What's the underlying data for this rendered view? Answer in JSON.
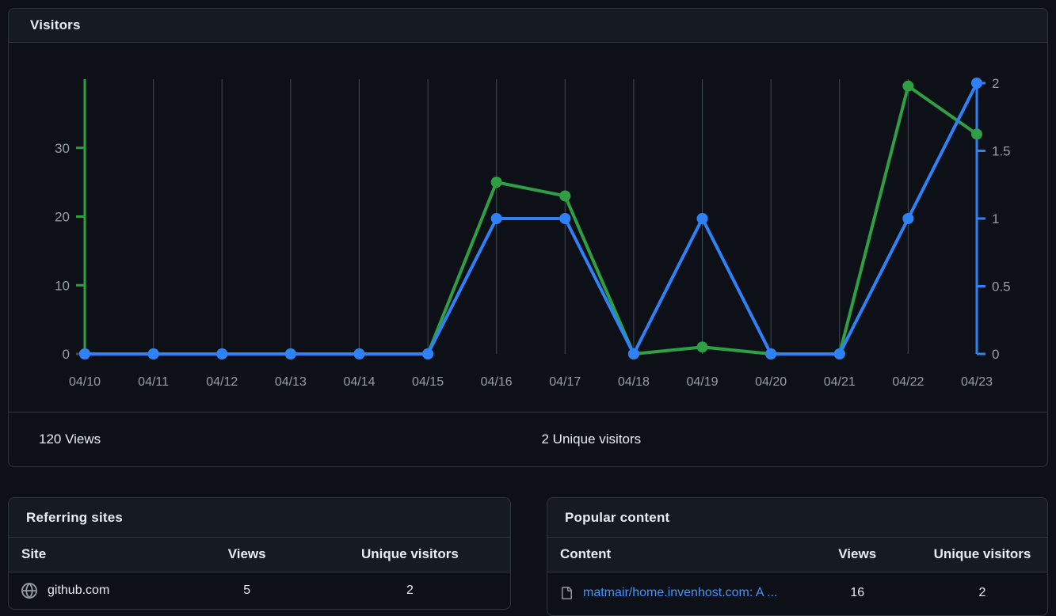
{
  "colors": {
    "background": "#0d1117",
    "panel_header": "#161b22",
    "border": "#30363d",
    "views_green": "#2ea043",
    "unique_blue": "#2f81f7",
    "link_blue": "#4493f8",
    "text": "#e6edf3",
    "axis_text": "#959da5",
    "gridline": "#424a53"
  },
  "visitors": {
    "title": "Visitors",
    "views_total": "120 Views",
    "unique_total": "2 Unique visitors"
  },
  "chart_data": {
    "type": "line",
    "title": "Visitors",
    "categories": [
      "04/10",
      "04/11",
      "04/12",
      "04/13",
      "04/14",
      "04/15",
      "04/16",
      "04/17",
      "04/18",
      "04/19",
      "04/20",
      "04/21",
      "04/22",
      "04/23"
    ],
    "series": [
      {
        "name": "Views",
        "axis": "left",
        "color": "#2ea043",
        "values": [
          0,
          0,
          0,
          0,
          0,
          0,
          25,
          23,
          0,
          1,
          0,
          0,
          39,
          32
        ]
      },
      {
        "name": "Unique visitors",
        "axis": "right",
        "color": "#2f81f7",
        "values": [
          0,
          0,
          0,
          0,
          0,
          0,
          1,
          1,
          0,
          1,
          0,
          0,
          1,
          2
        ]
      }
    ],
    "axes": {
      "left": {
        "ticks": [
          0,
          10,
          20,
          30
        ],
        "max": 40,
        "color": "#2ea043"
      },
      "right": {
        "ticks": [
          0,
          0.5,
          1,
          1.5,
          2
        ],
        "max": 2,
        "color": "#2f81f7"
      }
    },
    "grid": "vertical",
    "legend": "none",
    "colors": {
      "grid": "#424a53",
      "axis_text": "#959da5"
    }
  },
  "referring_sites": {
    "title": "Referring sites",
    "columns": [
      "Site",
      "Views",
      "Unique visitors"
    ],
    "rows": [
      {
        "icon": "globe-icon",
        "site": "github.com",
        "views": "5",
        "unique_visitors": "2"
      }
    ]
  },
  "popular_content": {
    "title": "Popular content",
    "columns": [
      "Content",
      "Views",
      "Unique visitors"
    ],
    "rows": [
      {
        "icon": "file-icon",
        "content": "matmair/home.invenhost.com: A ...",
        "views": "16",
        "unique_visitors": "2"
      }
    ]
  }
}
